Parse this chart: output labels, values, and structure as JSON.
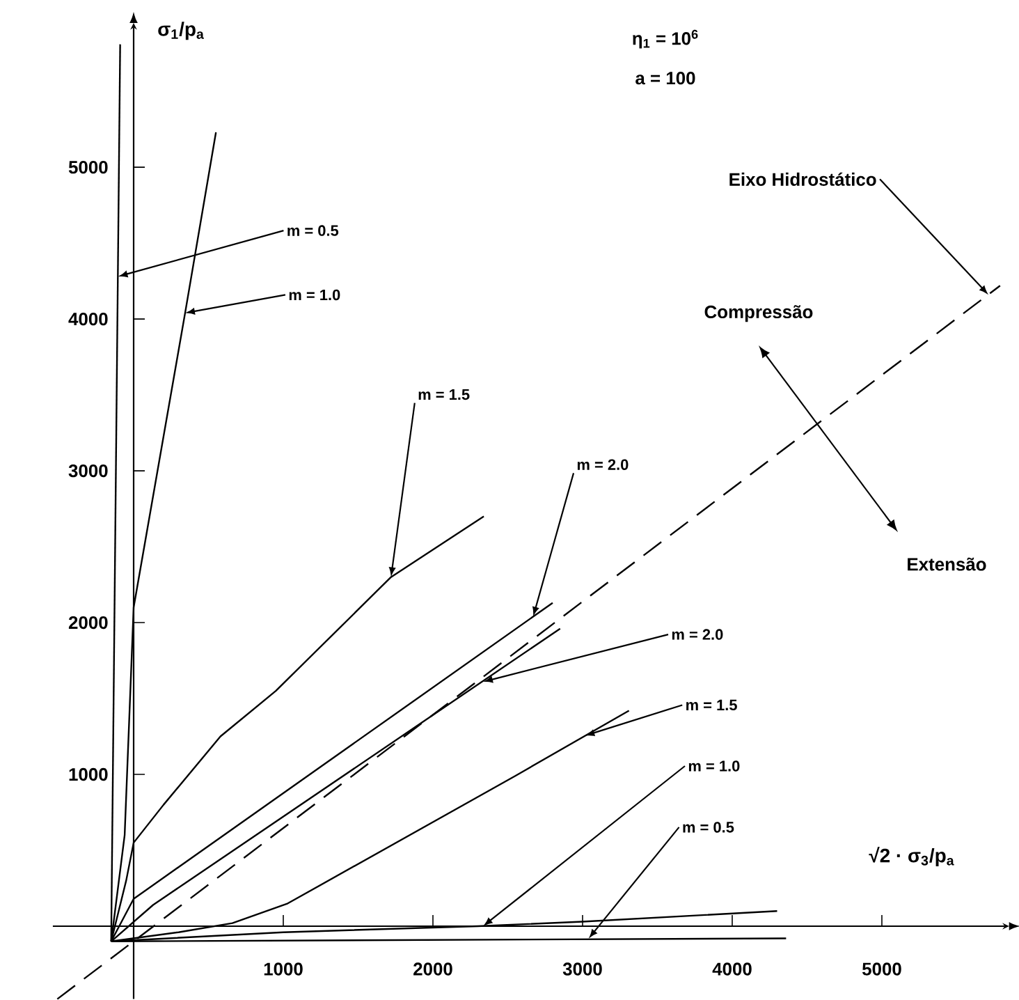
{
  "chart_data": {
    "type": "line",
    "xlabel": "√2 · σ$_{3}$/p$_{a}$",
    "ylabel": "σ$_{1}$/p$_{a}$",
    "xlim": [
      -540,
      5850
    ],
    "ylim": [
      -480,
      5950
    ],
    "xticks": [
      1000,
      2000,
      3000,
      4000,
      5000
    ],
    "yticks": [
      1000,
      2000,
      3000,
      4000,
      5000
    ],
    "marker": "none",
    "series": [
      {
        "color": "#000000",
        "x": [
          -150,
          -90
        ],
        "values": [
          -100,
          5810
        ]
      },
      {
        "color": "#000000",
        "x": [
          -150,
          -60,
          0,
          344,
          550
        ],
        "values": [
          -100,
          600,
          2100,
          4040,
          5230
        ]
      },
      {
        "color": "#000000",
        "x": [
          -150,
          -50,
          0,
          200,
          580,
          950,
          1720,
          2340
        ],
        "values": [
          -100,
          300,
          550,
          800,
          1250,
          1550,
          2300,
          2700
        ]
      },
      {
        "color": "#000000",
        "x": [
          -150,
          0,
          2800
        ],
        "values": [
          -100,
          180,
          2130
        ]
      },
      {
        "color": "#000000",
        "line_style": "dashed",
        "x": [
          -510,
          5790
        ],
        "values": [
          -480,
          4220
        ]
      },
      {
        "color": "#000000",
        "x": [
          -150,
          130,
          2850
        ],
        "values": [
          -100,
          140,
          1960
        ]
      },
      {
        "color": "#000000",
        "x": [
          -150,
          300,
          660,
          1030,
          2550,
          3310
        ],
        "values": [
          -100,
          -40,
          20,
          150,
          990,
          1420
        ]
      },
      {
        "color": "#000000",
        "x": [
          -150,
          1000,
          2300,
          3000,
          4300
        ],
        "values": [
          -100,
          -40,
          0,
          30,
          100
        ]
      },
      {
        "color": "#000000",
        "x": [
          -150,
          4360
        ],
        "values": [
          -100,
          -80
        ]
      }
    ],
    "annotations": [
      "η$_{1}$ = 10$^{6}$",
      "a = 100",
      "Compressão",
      "Extensão",
      {
        "text": "Eixo Hidrostático",
        "x": 5712,
        "y": 4160
      },
      {
        "text": "m = 0.5",
        "x": -105,
        "y": 4280
      },
      {
        "text": "m = 1.0",
        "x": 344,
        "y": 4040
      },
      {
        "text": "m = 1.5",
        "x": 1720,
        "y": 2300
      },
      {
        "text": "m = 2.0",
        "x": 2670,
        "y": 2040
      },
      {
        "text": "m = 2.0",
        "x": 2335,
        "y": 1610
      },
      {
        "text": "m = 1.5",
        "x": 3015,
        "y": 1255
      },
      {
        "text": "m = 1.0",
        "x": 2335,
        "y": 0
      },
      {
        "text": "m = 0.5",
        "x": 3040,
        "y": -82
      }
    ]
  }
}
